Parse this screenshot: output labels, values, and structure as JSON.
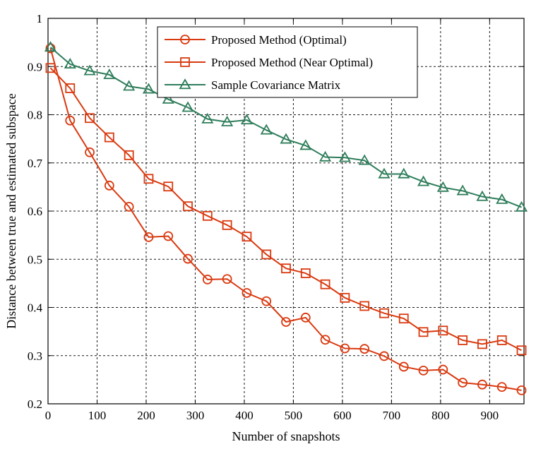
{
  "chart_data": {
    "type": "line",
    "xlabel": "Number of snapshots",
    "ylabel": "Distance between true and estimated subspace",
    "xlim": [
      0,
      970
    ],
    "ylim": [
      0.2,
      1.0
    ],
    "xticks": [
      0,
      100,
      200,
      300,
      400,
      500,
      600,
      700,
      800,
      900
    ],
    "yticks": [
      0.2,
      0.3,
      0.4,
      0.5,
      0.6,
      0.7,
      0.8,
      0.9,
      1.0
    ],
    "xtick_labels": [
      "0",
      "100",
      "200",
      "300",
      "400",
      "500",
      "600",
      "700",
      "800",
      "900"
    ],
    "ytick_labels": [
      "0.2",
      "0.3",
      "0.4",
      "0.5",
      "0.6",
      "0.7",
      "0.8",
      "0.9",
      "1"
    ],
    "grid": true,
    "legend_position": "top-center",
    "x": [
      5,
      45,
      85,
      125,
      165,
      205,
      245,
      285,
      325,
      365,
      405,
      445,
      485,
      525,
      565,
      605,
      645,
      685,
      725,
      765,
      805,
      845,
      885,
      925,
      965
    ],
    "series": [
      {
        "name": "Proposed Method (Optimal)",
        "color": "#d93a10",
        "marker": "circle",
        "values": [
          0.938,
          0.788,
          0.722,
          0.653,
          0.609,
          0.546,
          0.548,
          0.501,
          0.458,
          0.459,
          0.43,
          0.413,
          0.37,
          0.379,
          0.333,
          0.315,
          0.314,
          0.299,
          0.277,
          0.269,
          0.271,
          0.244,
          0.24,
          0.235,
          0.228
        ]
      },
      {
        "name": "Proposed Method (Near Optimal)",
        "color": "#d93a10",
        "marker": "square",
        "values": [
          0.897,
          0.855,
          0.793,
          0.753,
          0.716,
          0.667,
          0.651,
          0.61,
          0.59,
          0.571,
          0.547,
          0.51,
          0.481,
          0.471,
          0.448,
          0.42,
          0.403,
          0.388,
          0.377,
          0.349,
          0.352,
          0.332,
          0.324,
          0.332,
          0.311
        ]
      },
      {
        "name": "Sample Covariance Matrix",
        "color": "#2e7d5b",
        "marker": "triangle",
        "values": [
          0.94,
          0.905,
          0.891,
          0.883,
          0.859,
          0.853,
          0.832,
          0.815,
          0.791,
          0.785,
          0.789,
          0.768,
          0.749,
          0.736,
          0.712,
          0.711,
          0.705,
          0.677,
          0.677,
          0.661,
          0.649,
          0.642,
          0.63,
          0.624,
          0.608
        ]
      }
    ]
  }
}
